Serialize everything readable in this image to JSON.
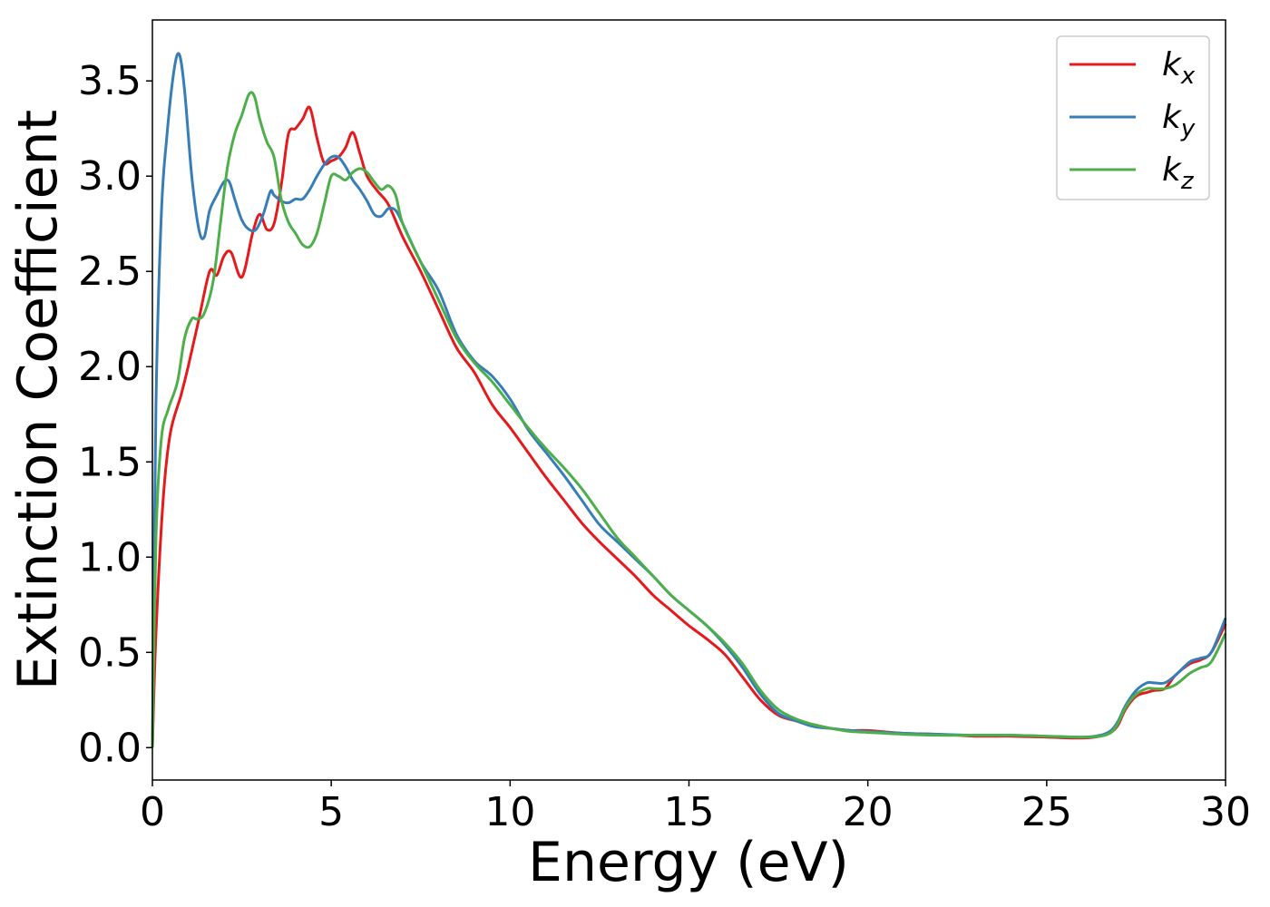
{
  "chart_data": {
    "type": "line",
    "title": "",
    "xlabel": "Energy (eV)",
    "ylabel": "Extinction Coefficient",
    "xlim": [
      0,
      30
    ],
    "ylim": [
      -0.17,
      3.82
    ],
    "xticks": [
      0,
      5,
      10,
      15,
      20,
      25,
      30
    ],
    "xtick_labels": [
      "0",
      "5",
      "10",
      "15",
      "20",
      "25",
      "30"
    ],
    "yticks": [
      0.0,
      0.5,
      1.0,
      1.5,
      2.0,
      2.5,
      3.0,
      3.5
    ],
    "ytick_labels": [
      "0.0",
      "0.5",
      "1.0",
      "1.5",
      "2.0",
      "2.5",
      "3.0",
      "3.5"
    ],
    "grid": false,
    "legend": "top-right",
    "series": [
      {
        "name": "k",
        "subscript": "x",
        "color": "#e41a1c",
        "x": [
          0,
          0.1,
          0.3,
          0.5,
          0.8,
          1.0,
          1.3,
          1.6,
          1.8,
          2.0,
          2.2,
          2.5,
          2.8,
          3.0,
          3.2,
          3.4,
          3.6,
          3.8,
          4.0,
          4.2,
          4.4,
          4.6,
          4.8,
          5.0,
          5.2,
          5.4,
          5.6,
          5.8,
          6.0,
          6.3,
          6.6,
          7.0,
          7.5,
          8.0,
          8.5,
          9.0,
          9.5,
          10.0,
          10.5,
          11.0,
          11.5,
          12.0,
          12.5,
          13.0,
          13.5,
          14.0,
          14.5,
          15.0,
          15.5,
          16.0,
          16.5,
          17.0,
          17.5,
          18.0,
          18.5,
          19.0,
          19.5,
          20.0,
          21.0,
          22.0,
          23.0,
          24.0,
          25.0,
          26.0,
          26.5,
          26.8,
          27.0,
          27.2,
          27.5,
          27.8,
          28.0,
          28.3,
          28.6,
          29.0,
          29.3,
          29.6,
          30.0
        ],
        "values": [
          0.0,
          0.6,
          1.3,
          1.65,
          1.85,
          2.0,
          2.25,
          2.5,
          2.48,
          2.58,
          2.6,
          2.47,
          2.7,
          2.8,
          2.72,
          2.75,
          2.95,
          3.22,
          3.25,
          3.3,
          3.36,
          3.2,
          3.07,
          3.08,
          3.1,
          3.15,
          3.23,
          3.12,
          3.0,
          2.92,
          2.85,
          2.68,
          2.5,
          2.3,
          2.1,
          1.97,
          1.8,
          1.68,
          1.55,
          1.42,
          1.3,
          1.18,
          1.08,
          0.99,
          0.9,
          0.8,
          0.72,
          0.64,
          0.57,
          0.49,
          0.37,
          0.25,
          0.17,
          0.14,
          0.12,
          0.1,
          0.09,
          0.09,
          0.075,
          0.07,
          0.06,
          0.06,
          0.055,
          0.05,
          0.06,
          0.08,
          0.12,
          0.2,
          0.27,
          0.29,
          0.3,
          0.31,
          0.38,
          0.44,
          0.46,
          0.5,
          0.65
        ]
      },
      {
        "name": "k",
        "subscript": "y",
        "color": "#377eb8",
        "x": [
          0,
          0.1,
          0.25,
          0.4,
          0.6,
          0.75,
          0.9,
          1.1,
          1.3,
          1.45,
          1.6,
          1.8,
          2.0,
          2.15,
          2.3,
          2.5,
          2.7,
          2.9,
          3.1,
          3.3,
          3.4,
          3.6,
          3.8,
          4.0,
          4.2,
          4.4,
          4.6,
          4.8,
          5.0,
          5.2,
          5.4,
          5.6,
          5.8,
          6.0,
          6.2,
          6.4,
          6.6,
          6.8,
          7.0,
          7.5,
          8.0,
          8.5,
          9.0,
          9.5,
          10.0,
          10.5,
          11.0,
          11.5,
          12.0,
          12.5,
          13.0,
          13.5,
          14.0,
          14.5,
          15.0,
          15.5,
          16.0,
          16.5,
          17.0,
          17.5,
          18.0,
          18.5,
          19.0,
          19.5,
          20.0,
          21.0,
          22.0,
          23.0,
          24.0,
          25.0,
          26.0,
          26.5,
          26.8,
          27.0,
          27.2,
          27.5,
          27.8,
          28.0,
          28.3,
          28.6,
          29.0,
          29.3,
          29.6,
          30.0
        ],
        "values": [
          0.0,
          1.8,
          2.8,
          3.2,
          3.55,
          3.64,
          3.45,
          3.0,
          2.72,
          2.68,
          2.82,
          2.9,
          2.97,
          2.97,
          2.88,
          2.77,
          2.72,
          2.72,
          2.8,
          2.92,
          2.9,
          2.87,
          2.86,
          2.88,
          2.88,
          2.93,
          3.0,
          3.06,
          3.1,
          3.1,
          3.05,
          2.98,
          2.93,
          2.87,
          2.8,
          2.79,
          2.83,
          2.82,
          2.75,
          2.55,
          2.4,
          2.17,
          2.03,
          1.95,
          1.83,
          1.67,
          1.55,
          1.43,
          1.3,
          1.17,
          1.08,
          0.99,
          0.9,
          0.8,
          0.72,
          0.64,
          0.54,
          0.42,
          0.28,
          0.18,
          0.14,
          0.11,
          0.1,
          0.09,
          0.085,
          0.075,
          0.07,
          0.065,
          0.065,
          0.06,
          0.055,
          0.065,
          0.09,
          0.14,
          0.22,
          0.3,
          0.34,
          0.34,
          0.34,
          0.38,
          0.45,
          0.47,
          0.5,
          0.68
        ]
      },
      {
        "name": "k",
        "subscript": "z",
        "color": "#4daf4a",
        "x": [
          0,
          0.1,
          0.25,
          0.45,
          0.7,
          0.9,
          1.1,
          1.25,
          1.45,
          1.7,
          1.9,
          2.1,
          2.3,
          2.5,
          2.7,
          2.85,
          3.0,
          3.2,
          3.4,
          3.6,
          3.8,
          4.0,
          4.2,
          4.4,
          4.6,
          4.8,
          5.0,
          5.2,
          5.4,
          5.6,
          5.8,
          6.0,
          6.2,
          6.4,
          6.6,
          6.8,
          7.0,
          7.5,
          8.0,
          8.5,
          9.0,
          9.5,
          10.0,
          10.5,
          11.0,
          11.5,
          12.0,
          12.5,
          13.0,
          13.5,
          14.0,
          14.5,
          15.0,
          15.5,
          16.0,
          16.5,
          17.0,
          17.5,
          18.0,
          18.5,
          19.0,
          19.5,
          20.0,
          21.0,
          22.0,
          23.0,
          24.0,
          25.0,
          26.0,
          26.5,
          26.8,
          27.0,
          27.2,
          27.5,
          27.8,
          28.0,
          28.3,
          28.6,
          29.0,
          29.3,
          29.6,
          30.0
        ],
        "values": [
          0.0,
          1.1,
          1.62,
          1.78,
          1.92,
          2.15,
          2.25,
          2.25,
          2.28,
          2.45,
          2.75,
          3.05,
          3.22,
          3.32,
          3.43,
          3.42,
          3.3,
          3.18,
          3.1,
          2.88,
          2.76,
          2.7,
          2.64,
          2.63,
          2.7,
          2.85,
          3.0,
          3.0,
          2.98,
          3.02,
          3.04,
          3.02,
          2.97,
          2.93,
          2.95,
          2.9,
          2.75,
          2.55,
          2.35,
          2.15,
          2.02,
          1.92,
          1.8,
          1.68,
          1.57,
          1.47,
          1.36,
          1.23,
          1.1,
          1.0,
          0.9,
          0.8,
          0.72,
          0.64,
          0.55,
          0.44,
          0.3,
          0.2,
          0.15,
          0.12,
          0.1,
          0.085,
          0.08,
          0.07,
          0.065,
          0.065,
          0.065,
          0.06,
          0.055,
          0.06,
          0.08,
          0.13,
          0.21,
          0.28,
          0.31,
          0.31,
          0.31,
          0.33,
          0.39,
          0.42,
          0.45,
          0.6
        ]
      }
    ]
  }
}
